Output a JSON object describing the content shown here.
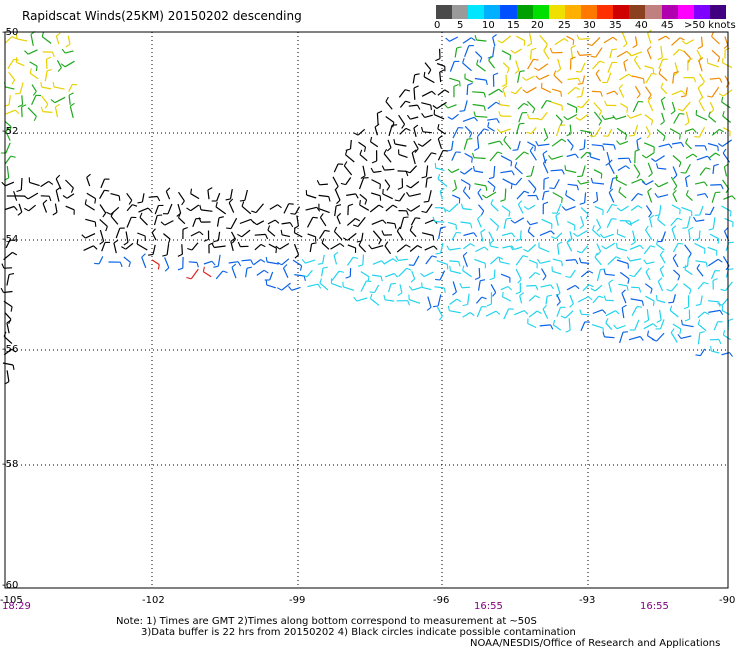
{
  "header": {
    "title": "Rapidscat Winds(25KM) 20150202 descending"
  },
  "legend": {
    "labels": [
      "0",
      "5",
      "10",
      "15",
      "20",
      "25",
      "30",
      "35",
      "40",
      "45",
      ">50 knots"
    ],
    "colors": [
      "#4a4a4a",
      "#9a9a9a",
      "#00e6ff",
      "#00b0ff",
      "#0050ff",
      "#00a000",
      "#00e000",
      "#f0e000",
      "#ffb000",
      "#ff7800",
      "#ff3000",
      "#d00000",
      "#8b4020",
      "#c08080",
      "#b000b0",
      "#ff00ff",
      "#8000ff",
      "#400080"
    ]
  },
  "axes": {
    "lat_labels": [
      "-50",
      "-52",
      "-54",
      "-56",
      "-58",
      "-60"
    ],
    "lon_labels": [
      "-105",
      "-102",
      "-99",
      "-96",
      "-93",
      "-90"
    ],
    "time_labels": [
      "18:29",
      "16:55",
      "16:55"
    ]
  },
  "notes": {
    "line1": "Note: 1) Times are GMT 2)Times along bottom correspond to measurement at ~50S",
    "line2": "3)Data buffer is 22 hrs from 20150202 4) Black circles indicate possible contamination",
    "line3": "NOAA/NESDIS/Office of Research and Applications"
  }
}
